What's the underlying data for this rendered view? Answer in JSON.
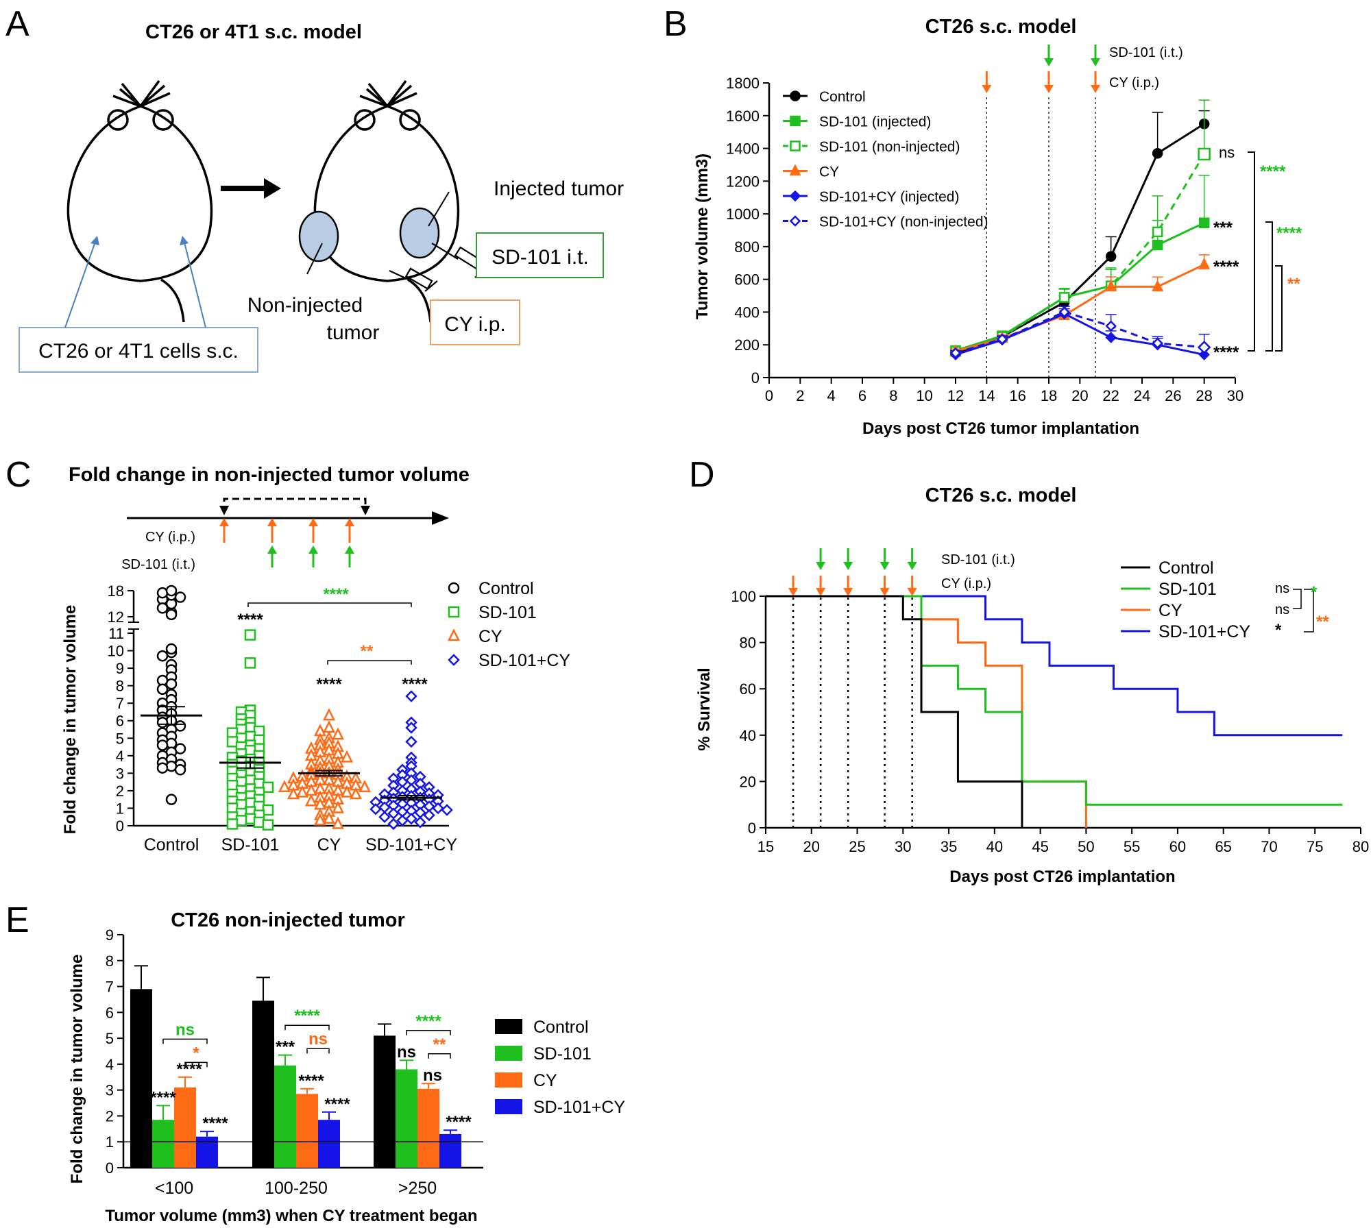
{
  "colors": {
    "control": "#000000",
    "sd101": "#1fbf1f",
    "cy": "#ff6a14",
    "combo": "#1414e6",
    "diagram_fill": "#b8cde4",
    "diagram_box_blue": "#8aa8d0",
    "diagram_box_green": "#3a9a3a",
    "diagram_box_orange": "#f0a060"
  },
  "panelA": {
    "letter": "A",
    "title": "CT26 or 4T1 s.c. model",
    "cells_label": "CT26 or 4T1 cells s.c.",
    "injected_label": "Injected tumor",
    "noninjected_label_line1": "Non-injected",
    "noninjected_label_line2": "tumor",
    "sd101_box": "SD-101 i.t.",
    "cy_box": "CY i.p."
  },
  "panelB": {
    "letter": "B",
    "chart_data": {
      "type": "line",
      "title": "CT26 s.c. model",
      "xlabel": "Days post CT26 tumor implantation",
      "ylabel": "Tumor volume  (mm3)",
      "xlim": [
        0,
        30
      ],
      "ylim": [
        0,
        1800
      ],
      "xticks": [
        0,
        2,
        4,
        6,
        8,
        10,
        12,
        14,
        16,
        18,
        20,
        22,
        24,
        26,
        28,
        30
      ],
      "yticks": [
        0,
        200,
        400,
        600,
        800,
        1000,
        1200,
        1400,
        1600,
        1800
      ],
      "treatment_days": [
        14,
        18,
        21
      ],
      "sd101_days": [
        18,
        21
      ],
      "cy_days": [
        14,
        18,
        21
      ],
      "annotation_sd101": "SD-101 (i.t.)",
      "annotation_cy": "CY (i.p.)",
      "x": [
        12,
        15,
        19,
        22,
        25,
        28
      ],
      "series": [
        {
          "name": "Control",
          "values": [
            150,
            250,
            460,
            740,
            1370,
            1550
          ],
          "err": [
            15,
            25,
            40,
            120,
            250,
            80
          ]
        },
        {
          "name": "SD-101 (injected)",
          "values": [
            165,
            255,
            490,
            560,
            810,
            945
          ],
          "err": [
            15,
            25,
            50,
            100,
            150,
            290
          ]
        },
        {
          "name": "SD-101 (non-injected)",
          "values": [
            160,
            250,
            490,
            560,
            890,
            1365
          ],
          "err": [
            15,
            25,
            55,
            110,
            220,
            330
          ]
        },
        {
          "name": "CY",
          "values": [
            160,
            240,
            380,
            555,
            555,
            690
          ],
          "err": [
            15,
            20,
            30,
            60,
            60,
            60
          ]
        },
        {
          "name": "SD-101+CY (injected)",
          "values": [
            140,
            230,
            390,
            245,
            200,
            140
          ],
          "err": [
            15,
            20,
            30,
            40,
            40,
            40
          ]
        },
        {
          "name": "SD-101+CY (non-injected)",
          "values": [
            150,
            235,
            400,
            315,
            210,
            185
          ],
          "err": [
            15,
            20,
            35,
            70,
            40,
            80
          ]
        }
      ],
      "significance": {
        "ns": "ns",
        "s1": "***",
        "s2": "****",
        "s3": "****",
        "b1": "****",
        "b2": "****",
        "b3": "**"
      }
    }
  },
  "panelC": {
    "letter": "C",
    "title": "Fold change in non-injected tumor volume",
    "timeline_cy": "CY (i.p.)",
    "timeline_sd101": "SD-101 (i.t.)",
    "chart_data": {
      "type": "scatter",
      "ylabel": "Fold change in tumor volume",
      "categories": [
        "Control",
        "SD-101",
        "CY",
        "SD-101+CY"
      ],
      "yticks_lower": [
        0,
        1,
        2,
        3,
        4,
        5,
        6,
        7,
        8,
        9,
        10,
        11
      ],
      "yticks_upper": [
        12,
        18
      ],
      "means": [
        6.3,
        3.6,
        3.0,
        1.6
      ],
      "sem": [
        0.5,
        0.3,
        0.15,
        0.12
      ],
      "series": [
        {
          "name": "Control",
          "values": [
            13,
            15,
            16,
            17,
            17.5,
            16.5,
            14,
            18,
            12.5,
            9.9,
            10.1,
            9.7,
            9.2,
            8.9,
            8.5,
            8.3,
            8.1,
            7.8,
            7.5,
            7.2,
            7.0,
            6.8,
            6.6,
            6.4,
            6.2,
            6.0,
            5.9,
            5.7,
            5.5,
            5.3,
            5.1,
            4.9,
            4.7,
            4.6,
            4.4,
            4.2,
            4.0,
            3.8,
            3.6,
            3.5,
            3.4,
            3.3,
            3.2,
            1.5
          ]
        },
        {
          "name": "SD-101",
          "values": [
            10.9,
            9.3,
            6.6,
            6.5,
            6.3,
            6.1,
            5.9,
            5.8,
            5.6,
            5.5,
            5.4,
            5.3,
            5.1,
            5.0,
            4.9,
            4.8,
            4.6,
            4.5,
            4.4,
            4.3,
            4.1,
            4.0,
            3.9,
            3.8,
            3.7,
            3.6,
            3.5,
            3.4,
            3.3,
            3.2,
            3.1,
            3.0,
            2.9,
            2.8,
            2.7,
            2.6,
            2.5,
            2.4,
            2.3,
            2.2,
            2.1,
            2.0,
            1.9,
            1.8,
            1.7,
            1.6,
            1.5,
            1.4,
            1.3,
            1.2,
            1.1,
            1.0,
            0.9,
            0.8,
            0.7,
            0.6,
            0.5,
            0.4,
            0.3,
            0.2,
            0.1,
            0.05
          ]
        },
        {
          "name": "CY",
          "values": [
            6.3,
            5.6,
            5.4,
            5.2,
            5.0,
            4.9,
            4.7,
            4.6,
            4.5,
            4.4,
            4.3,
            4.2,
            4.1,
            4.0,
            3.9,
            3.8,
            3.7,
            3.6,
            3.5,
            3.4,
            3.3,
            3.2,
            3.1,
            3.0,
            3.0,
            2.9,
            2.9,
            2.8,
            2.8,
            2.7,
            2.7,
            2.6,
            2.6,
            2.5,
            2.5,
            2.4,
            2.4,
            2.3,
            2.3,
            2.2,
            2.2,
            2.1,
            2.1,
            2.0,
            2.0,
            1.9,
            1.9,
            1.8,
            1.8,
            1.7,
            1.6,
            1.5,
            1.4,
            1.3,
            1.2,
            1.0,
            0.8,
            0.6,
            0.4,
            0.3,
            0.1
          ]
        },
        {
          "name": "SD-101+CY",
          "values": [
            7.4,
            5.9,
            5.6,
            4.8,
            3.9,
            3.6,
            3.4,
            3.2,
            3.0,
            2.9,
            2.8,
            2.7,
            2.6,
            2.5,
            2.4,
            2.3,
            2.2,
            2.1,
            2.0,
            1.95,
            1.9,
            1.85,
            1.8,
            1.75,
            1.7,
            1.65,
            1.6,
            1.55,
            1.5,
            1.45,
            1.4,
            1.35,
            1.3,
            1.25,
            1.2,
            1.15,
            1.1,
            1.05,
            1.0,
            0.95,
            0.9,
            0.85,
            0.8,
            0.75,
            0.7,
            0.6,
            0.5,
            0.4,
            0.3,
            0.2,
            0.1
          ]
        }
      ],
      "significance": {
        "sd101": "****",
        "cy": "****",
        "combo": "****",
        "bracket1": "****",
        "bracket2": "**"
      }
    }
  },
  "panelD": {
    "letter": "D",
    "chart_data": {
      "type": "line",
      "title": "CT26 s.c. model",
      "xlabel": "Days post CT26 implantation",
      "ylabel": "% Survival",
      "xlim": [
        15,
        80
      ],
      "ylim": [
        0,
        100
      ],
      "xticks": [
        15,
        20,
        25,
        30,
        35,
        40,
        45,
        50,
        55,
        60,
        65,
        70,
        75,
        80
      ],
      "yticks": [
        0,
        20,
        40,
        60,
        80,
        100
      ],
      "treatment_days": [
        18,
        21,
        24,
        28,
        31
      ],
      "sd101_days": [
        21,
        24,
        28,
        31
      ],
      "cy_days": [
        18,
        21,
        24,
        28,
        31
      ],
      "annotation_sd101": "SD-101 (i.t.)",
      "annotation_cy": "CY (i.p.)",
      "series": [
        {
          "name": "Control",
          "steps": [
            [
              15,
              100
            ],
            [
              30,
              90
            ],
            [
              32,
              50
            ],
            [
              36,
              20
            ],
            [
              43,
              0
            ]
          ]
        },
        {
          "name": "SD-101",
          "steps": [
            [
              15,
              100
            ],
            [
              32,
              70
            ],
            [
              36,
              60
            ],
            [
              39,
              50
            ],
            [
              43,
              20
            ],
            [
              50,
              10
            ],
            [
              78,
              10
            ]
          ]
        },
        {
          "name": "CY",
          "steps": [
            [
              15,
              100
            ],
            [
              32,
              90
            ],
            [
              36,
              80
            ],
            [
              39,
              70
            ],
            [
              43,
              20
            ],
            [
              50,
              0
            ]
          ]
        },
        {
          "name": "SD-101+CY",
          "steps": [
            [
              15,
              100
            ],
            [
              39,
              90
            ],
            [
              43,
              80
            ],
            [
              46,
              70
            ],
            [
              53,
              60
            ],
            [
              60,
              50
            ],
            [
              64,
              40
            ],
            [
              78,
              40
            ]
          ]
        }
      ],
      "legend_sig": [
        "",
        "ns",
        "ns",
        "*"
      ],
      "bracket_sig": [
        "*",
        "**"
      ]
    }
  },
  "panelE": {
    "letter": "E",
    "chart_data": {
      "type": "bar",
      "title": "CT26 non-injected tumor",
      "xlabel": "Tumor volume (mm3) when CY treatment began",
      "ylabel": "Fold change in tumor volume",
      "ylim": [
        0,
        9
      ],
      "yticks": [
        0,
        1,
        2,
        3,
        4,
        5,
        6,
        7,
        8,
        9
      ],
      "categories": [
        "<100",
        "100-250",
        ">250"
      ],
      "series": [
        {
          "name": "Control",
          "values": [
            6.9,
            6.45,
            5.1
          ],
          "err": [
            0.9,
            0.9,
            0.45
          ]
        },
        {
          "name": "SD-101",
          "values": [
            1.85,
            3.95,
            3.8
          ],
          "err": [
            0.55,
            0.4,
            0.35
          ]
        },
        {
          "name": "CY",
          "values": [
            3.1,
            2.85,
            3.05
          ],
          "err": [
            0.4,
            0.2,
            0.2
          ]
        },
        {
          "name": "SD-101+CY",
          "values": [
            1.2,
            1.85,
            1.3
          ],
          "err": [
            0.2,
            0.3,
            0.15
          ]
        }
      ],
      "reference_line": 1,
      "sig_groups": [
        {
          "sd101": "****",
          "cy": "****",
          "combo": "****",
          "b1": "ns",
          "b2": "*"
        },
        {
          "sd101": "***",
          "cy": "****",
          "combo": "****",
          "b1": "****",
          "b2": "ns"
        },
        {
          "sd101": "ns",
          "cy": "ns",
          "combo": "****",
          "b1": "****",
          "b2": "**"
        }
      ]
    }
  }
}
